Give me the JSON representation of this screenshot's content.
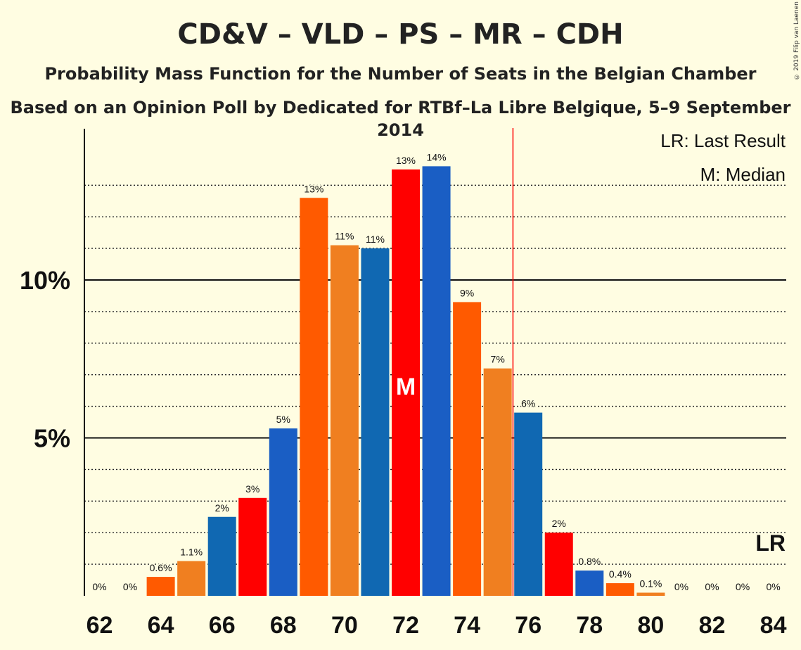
{
  "header": {
    "title": "CD&V – VLD – PS – MR – CDH",
    "subtitle": "Probability Mass Function for the Number of Seats in the Belgian Chamber",
    "subtitle2": "Based on an Opinion Poll by Dedicated for RTBf–La Libre Belgique, 5–9 September 2014",
    "copyright": "© 2019 Filip van Laenen"
  },
  "legend": {
    "last_result": "LR: Last Result",
    "median": "M: Median"
  },
  "colors": {
    "background": "#FFFDE2",
    "bar_colors": [
      "#1A5EC4",
      "#FF5A00",
      "#F07F20",
      "#1068B2",
      "#FF0000"
    ],
    "last_result_line": "#FF0000"
  },
  "chart_data": {
    "type": "bar",
    "x": [
      62,
      63,
      64,
      65,
      66,
      67,
      68,
      69,
      70,
      71,
      72,
      73,
      74,
      75,
      76,
      77,
      78,
      79,
      80,
      81,
      82,
      83,
      84
    ],
    "values": [
      0,
      0,
      0.6,
      1.1,
      2.5,
      3.1,
      5.3,
      12.6,
      11.1,
      11.0,
      13.5,
      13.6,
      9.3,
      7.2,
      5.8,
      2.0,
      0.8,
      0.4,
      0.1,
      0,
      0,
      0,
      0
    ],
    "data_labels": [
      "0%",
      "0%",
      "0.6%",
      "1.1%",
      "2%",
      "3%",
      "5%",
      "13%",
      "11%",
      "11%",
      "13%",
      "14%",
      "9%",
      "7%",
      "6%",
      "2%",
      "0.8%",
      "0.4%",
      "0.1%",
      "0%",
      "0%",
      "0%",
      "0%"
    ],
    "bar_color_index": [
      0,
      0,
      1,
      2,
      3,
      4,
      0,
      1,
      2,
      3,
      4,
      0,
      1,
      2,
      3,
      4,
      0,
      1,
      2,
      3,
      4,
      0,
      1
    ],
    "x_tick_labels": [
      "62",
      "64",
      "66",
      "68",
      "70",
      "72",
      "74",
      "76",
      "78",
      "80",
      "82",
      "84"
    ],
    "x_ticks": [
      62,
      64,
      66,
      68,
      70,
      72,
      74,
      76,
      78,
      80,
      82,
      84
    ],
    "y_tick_labels": [
      "5%",
      "10%"
    ],
    "y_ticks": [
      5,
      10
    ],
    "y_minor_gridlines": [
      1,
      2,
      3,
      4,
      6,
      7,
      8,
      9,
      11,
      12,
      13
    ],
    "ylim": [
      0,
      14.8
    ],
    "median_x": 72,
    "median_label": "M",
    "last_result_x": 75.5,
    "last_result_label": "LR"
  }
}
